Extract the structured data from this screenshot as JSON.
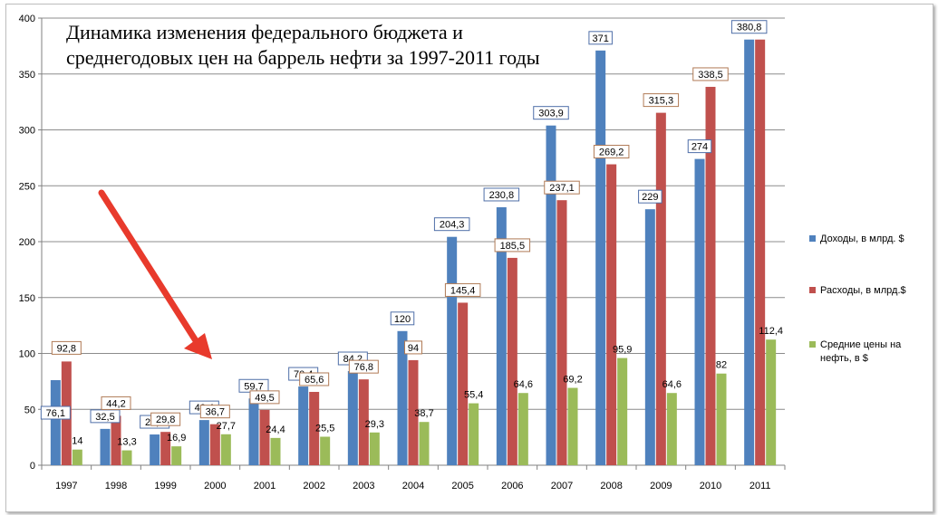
{
  "chart_data": {
    "type": "bar",
    "title_lines": [
      "Динамика изменения федерального бюджета и",
      "среднегодовых цен на баррель нефти за 1997-2011 годы"
    ],
    "categories": [
      "1997",
      "1998",
      "1999",
      "2000",
      "2001",
      "2002",
      "2003",
      "2004",
      "2005",
      "2006",
      "2007",
      "2008",
      "2009",
      "2010",
      "2011"
    ],
    "ylim": [
      0,
      400
    ],
    "yticks": [
      0,
      50,
      100,
      150,
      200,
      250,
      300,
      350,
      400
    ],
    "grid": true,
    "legend_placement": "right",
    "series": [
      {
        "name": "Доходы, в млрд. $",
        "color": "#4f81bd",
        "values": [
          76.1,
          32.5,
          27.5,
          40.4,
          59.7,
          70.4,
          84.2,
          120,
          204.3,
          230.8,
          303.9,
          371,
          229,
          274,
          380.8
        ],
        "labels": [
          "76,1",
          "32,5",
          "27,5",
          "40,4",
          "59,7",
          "70,4",
          "84,2",
          "120",
          "204,3",
          "230,8",
          "303,9",
          "371",
          "229",
          "274",
          "380,8"
        ]
      },
      {
        "name": "Расходы, в млрд.$",
        "color": "#c0504d",
        "values": [
          92.8,
          44.2,
          29.8,
          36.7,
          49.5,
          65.6,
          76.8,
          94,
          145.4,
          185.5,
          237.1,
          269.2,
          315.3,
          338.5,
          380.8
        ],
        "labels": [
          "92,8",
          "44,2",
          "29,8",
          "36,7",
          "49,5",
          "65,6",
          "76,8",
          "94",
          "145,4",
          "185,5",
          "237,1",
          "269,2",
          "315,3",
          "338,5",
          ""
        ]
      },
      {
        "name_lines": [
          "Средние цены на",
          "нефть, в $"
        ],
        "color": "#9bbb59",
        "values": [
          14,
          13.3,
          16.9,
          27.7,
          24.4,
          25.5,
          29.3,
          38.7,
          55.4,
          64.6,
          69.2,
          95.9,
          64.6,
          82,
          112.4
        ],
        "labels": [
          "14",
          "13,3",
          "16,9",
          "27,7",
          "24,4",
          "25,5",
          "29,3",
          "38,7",
          "55,4",
          "64,6",
          "69,2",
          "95,9",
          "64,6",
          "82",
          "112,4"
        ]
      }
    ],
    "annotation_arrow_color": "#e83a2c"
  }
}
